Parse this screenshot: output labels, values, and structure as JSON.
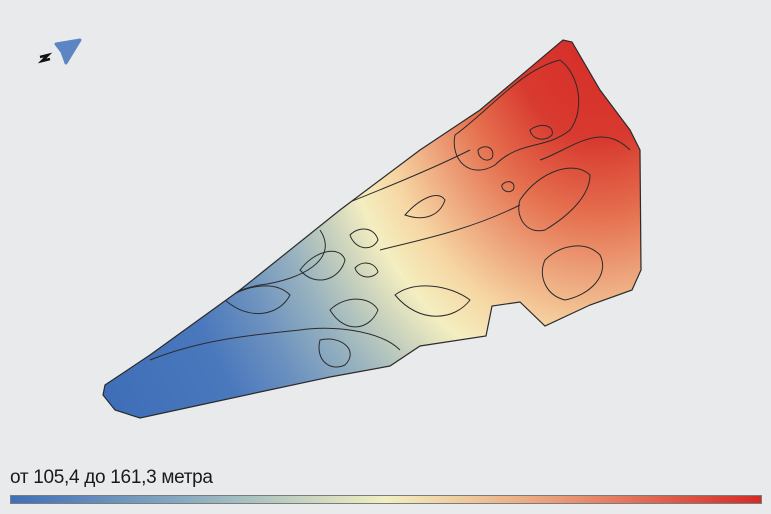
{
  "map": {
    "north_label": "N",
    "icons": {
      "north_arrow": "navigation-arrow-icon"
    },
    "colors": {
      "low": "#3f6fb8",
      "mid_low": "#8fb0c0",
      "mid": "#f2efc0",
      "mid_high": "#eba77e",
      "high": "#d62a27",
      "background": "#e9eaec",
      "arrow": "#5b85c3"
    }
  },
  "legend": {
    "label": "от 105,4 до 161,3 метра",
    "min": 105.4,
    "max": 161.3,
    "unit": "метра"
  }
}
